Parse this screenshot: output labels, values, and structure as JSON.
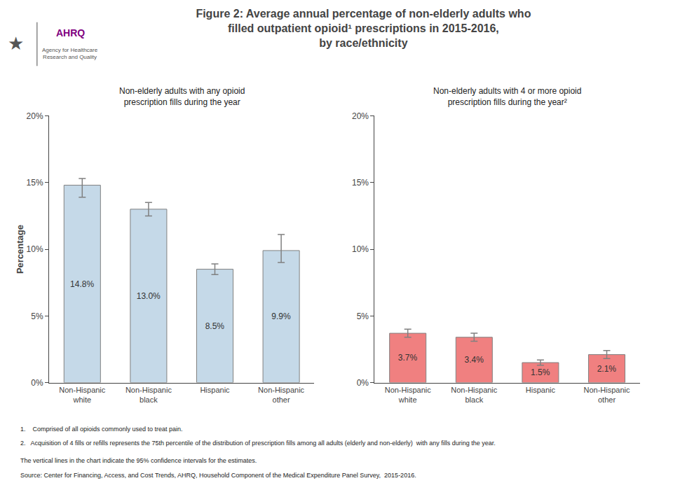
{
  "title": "Figure 2: Average annual percentage of non-elderly adults who\nfilled outpatient opioid¹ prescriptions in 2015-2016,\nby race/ethnicity",
  "annotations": [
    "★",
    "AHRQ",
    "Agency for Healthcare\nResearch and Quality",
    "1.    Comprised of all opioids commonly used to treat pain.",
    "2.   Acquisition of 4 fills or refills represents the 75th percentile of the distribution of prescription fills among all adults (elderly and non-elderly)  with any fills during the year.",
    "The vertical lines in the chart indicate the 95% confidence intervals for the estimates.",
    "Source: Center for Financing, Access, and Cost Trends, AHRQ, Household Component of the Medical Expenditure Panel Survey,  2015-2016."
  ],
  "chart_data": [
    {
      "type": "bar",
      "subtitle": "Non-elderly adults with any opioid\nprescription fills during the year",
      "ylabel": "Percentage",
      "categories": [
        "Non-Hispanic\nwhite",
        "Non-Hispanic\nblack",
        "Hispanic",
        "Non-Hispanic\nother"
      ],
      "values": [
        14.8,
        13.0,
        8.5,
        9.9
      ],
      "value_labels": [
        "14.8%",
        "13.0%",
        "8.5%",
        "9.9%"
      ],
      "data_labels": true,
      "error_lo": [
        0.9,
        0.5,
        0.4,
        0.9
      ],
      "error_hi": [
        0.5,
        0.5,
        0.4,
        1.2
      ],
      "color": "#c5d9e8",
      "ylim": [
        0,
        20
      ],
      "yticks": [
        {
          "value": 0,
          "label": "0%"
        },
        {
          "value": 5,
          "label": "5%"
        },
        {
          "value": 10,
          "label": "10%"
        },
        {
          "value": 15,
          "label": "15%"
        },
        {
          "value": 20,
          "label": "20%"
        }
      ],
      "grid": false
    },
    {
      "type": "bar",
      "subtitle": "Non-elderly adults with 4 or more opioid\nprescription fills during the year²",
      "categories": [
        "Non-Hispanic\nwhite",
        "Non-Hispanic\nblack",
        "Hispanic",
        "Non-Hispanic\nother"
      ],
      "values": [
        3.7,
        3.4,
        1.5,
        2.1
      ],
      "value_labels": [
        "3.7%",
        "3.4%",
        "1.5%",
        "2.1%"
      ],
      "data_labels": true,
      "error_lo": [
        0.3,
        0.3,
        0.2,
        0.3
      ],
      "error_hi": [
        0.3,
        0.3,
        0.2,
        0.3
      ],
      "color": "#f08080",
      "ylim": [
        0,
        20
      ],
      "yticks": [
        {
          "value": 0,
          "label": "0%"
        },
        {
          "value": 5,
          "label": "5%"
        },
        {
          "value": 10,
          "label": "10%"
        },
        {
          "value": 15,
          "label": "15%"
        },
        {
          "value": 20,
          "label": "20%"
        }
      ],
      "grid": false
    }
  ]
}
